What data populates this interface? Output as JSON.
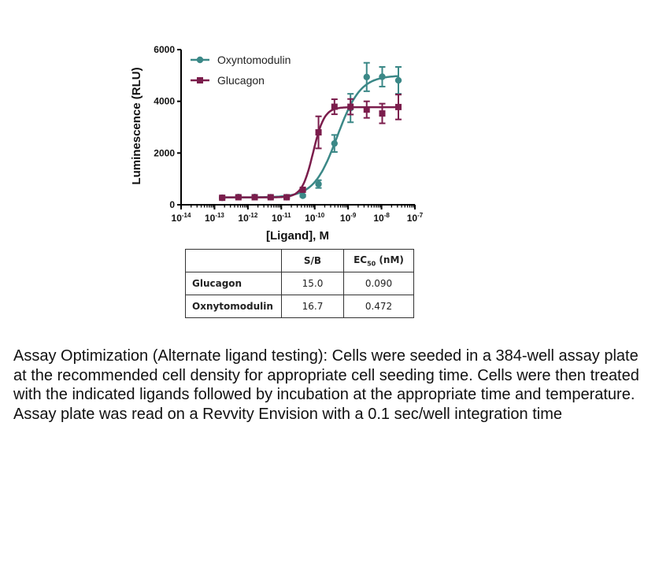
{
  "chart_data": {
    "type": "scatter",
    "xscale": "log",
    "xlabel": "[Ligand], M",
    "ylabel": "Luminescence (RLU)",
    "xlim": [
      1e-14,
      1e-07
    ],
    "ylim": [
      0,
      6000
    ],
    "yticks": [
      "0",
      "2000",
      "4000",
      "6000"
    ],
    "xticks": [
      {
        "base": "10",
        "exp": "-14"
      },
      {
        "base": "10",
        "exp": "-13"
      },
      {
        "base": "10",
        "exp": "-12"
      },
      {
        "base": "10",
        "exp": "-11"
      },
      {
        "base": "10",
        "exp": "-10"
      },
      {
        "base": "10",
        "exp": "-9"
      },
      {
        "base": "10",
        "exp": "-8"
      },
      {
        "base": "10",
        "exp": "-7"
      }
    ],
    "legend_position": "top-left",
    "grid": false,
    "series": [
      {
        "name": "Oxyntomodulin",
        "color": "#3b8887",
        "marker": "circle",
        "x": [
          1.7e-13,
          5.2e-13,
          1.6e-12,
          4.8e-12,
          1.45e-11,
          4.4e-11,
          1.3e-10,
          3.9e-10,
          1.18e-09,
          3.6e-09,
          1.05e-08,
          3.2e-08
        ],
        "y": [
          270,
          300,
          300,
          290,
          290,
          350,
          800,
          2370,
          3740,
          4940,
          4950,
          4810
        ],
        "err": [
          40,
          40,
          40,
          40,
          40,
          40,
          150,
          330,
          550,
          550,
          380,
          520
        ]
      },
      {
        "name": "Glucagon",
        "color": "#7b1d4c",
        "marker": "square",
        "x": [
          1.7e-13,
          5.2e-13,
          1.6e-12,
          4.8e-12,
          1.45e-11,
          4.4e-11,
          1.3e-10,
          3.9e-10,
          1.18e-09,
          3.6e-09,
          1.05e-08,
          3.2e-08
        ],
        "y": [
          270,
          290,
          290,
          290,
          290,
          580,
          2800,
          3790,
          3790,
          3680,
          3530,
          3780
        ],
        "err": [
          40,
          40,
          40,
          40,
          40,
          60,
          620,
          290,
          300,
          320,
          380,
          480
        ]
      }
    ]
  },
  "table": {
    "headers": [
      "",
      "S/B",
      "EC",
      "50",
      " (nM)"
    ],
    "rows": [
      {
        "name": "Glucagon",
        "sb": "15.0",
        "ec50": "0.090"
      },
      {
        "name": "Oxnytomodulin",
        "sb": "16.7",
        "ec50": "0.472"
      }
    ]
  },
  "caption": "Assay Optimization (Alternate ligand testing): Cells were seeded in a 384-well assay plate at the recommended cell density for appropriate cell seeding time. Cells were then treated with the indicated ligands followed by incubation at the appropriate time and temperature. Assay plate was read on a Revvity Envision with a 0.1 sec/well integration time"
}
